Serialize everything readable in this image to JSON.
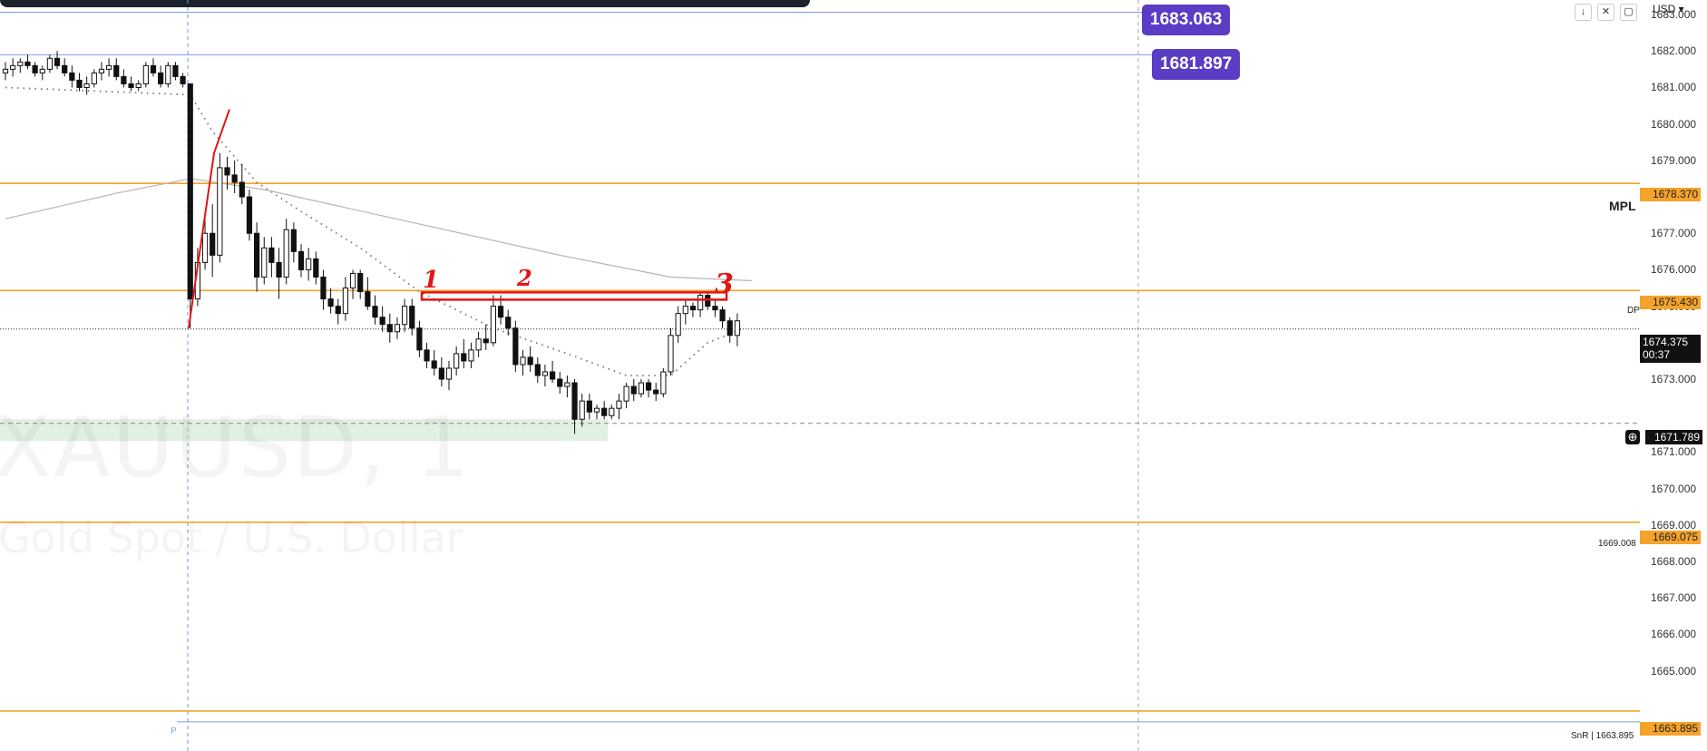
{
  "chart_data": {
    "type": "candlestick",
    "symbol_watermark": "XAUUSD, 1",
    "description_watermark": "Gold Spot / U.S. Dollar",
    "currency": "USD",
    "y_range": [
      1662.8,
      1683.4
    ],
    "y_ticks": [
      "1683.000",
      "1682.000",
      "1681.000",
      "1680.000",
      "1679.000",
      "1678.000",
      "1677.000",
      "1676.000",
      "1675.000",
      "1673.000",
      "1671.000",
      "1670.000",
      "1669.000",
      "1668.000",
      "1667.000",
      "1666.000",
      "1665.000"
    ],
    "candles": [
      [
        1681.4,
        1681.7,
        1681.2,
        1681.5
      ],
      [
        1681.5,
        1681.8,
        1681.3,
        1681.6
      ],
      [
        1681.6,
        1681.8,
        1681.4,
        1681.7
      ],
      [
        1681.7,
        1681.9,
        1681.5,
        1681.6
      ],
      [
        1681.6,
        1681.7,
        1681.3,
        1681.4
      ],
      [
        1681.4,
        1681.6,
        1681.2,
        1681.5
      ],
      [
        1681.5,
        1681.9,
        1681.4,
        1681.8
      ],
      [
        1681.8,
        1682.0,
        1681.5,
        1681.6
      ],
      [
        1681.6,
        1681.8,
        1681.3,
        1681.4
      ],
      [
        1681.4,
        1681.6,
        1681.0,
        1681.2
      ],
      [
        1681.2,
        1681.4,
        1680.9,
        1681.0
      ],
      [
        1681.0,
        1681.3,
        1680.8,
        1681.1
      ],
      [
        1681.1,
        1681.5,
        1681.0,
        1681.4
      ],
      [
        1681.4,
        1681.7,
        1681.2,
        1681.5
      ],
      [
        1681.5,
        1681.8,
        1681.3,
        1681.6
      ],
      [
        1681.6,
        1681.8,
        1681.2,
        1681.3
      ],
      [
        1681.3,
        1681.5,
        1681.0,
        1681.1
      ],
      [
        1681.1,
        1681.3,
        1680.9,
        1681.0
      ],
      [
        1681.0,
        1681.2,
        1680.9,
        1681.1
      ],
      [
        1681.1,
        1681.7,
        1681.0,
        1681.6
      ],
      [
        1681.6,
        1681.8,
        1681.3,
        1681.4
      ],
      [
        1681.4,
        1681.6,
        1681.0,
        1681.1
      ],
      [
        1681.1,
        1681.7,
        1681.0,
        1681.6
      ],
      [
        1681.6,
        1681.7,
        1681.2,
        1681.3
      ],
      [
        1681.3,
        1681.4,
        1681.0,
        1681.1
      ],
      [
        1681.1,
        1681.1,
        1674.4,
        1675.2
      ],
      [
        1675.2,
        1676.6,
        1675.0,
        1676.2
      ],
      [
        1676.2,
        1677.4,
        1676.0,
        1677.0
      ],
      [
        1677.0,
        1677.8,
        1675.8,
        1676.4
      ],
      [
        1676.4,
        1679.2,
        1676.2,
        1678.8
      ],
      [
        1678.8,
        1679.1,
        1678.2,
        1678.6
      ],
      [
        1678.6,
        1679.0,
        1678.1,
        1678.4
      ],
      [
        1678.4,
        1678.9,
        1677.8,
        1678.0
      ],
      [
        1678.0,
        1678.2,
        1676.8,
        1677.0
      ],
      [
        1677.0,
        1677.3,
        1675.4,
        1675.8
      ],
      [
        1675.8,
        1676.9,
        1675.6,
        1676.6
      ],
      [
        1676.6,
        1676.9,
        1675.8,
        1676.2
      ],
      [
        1676.2,
        1676.6,
        1675.2,
        1675.8
      ],
      [
        1675.8,
        1677.4,
        1675.6,
        1677.1
      ],
      [
        1677.1,
        1677.3,
        1676.2,
        1676.5
      ],
      [
        1676.5,
        1676.7,
        1675.8,
        1676.0
      ],
      [
        1676.0,
        1676.6,
        1675.7,
        1676.3
      ],
      [
        1676.3,
        1676.5,
        1675.6,
        1675.8
      ],
      [
        1675.8,
        1676.0,
        1674.9,
        1675.2
      ],
      [
        1675.2,
        1675.5,
        1674.8,
        1675.0
      ],
      [
        1675.0,
        1675.2,
        1674.5,
        1674.8
      ],
      [
        1674.8,
        1675.8,
        1674.6,
        1675.5
      ],
      [
        1675.5,
        1676.0,
        1675.2,
        1675.9
      ],
      [
        1675.9,
        1676.0,
        1675.2,
        1675.4
      ],
      [
        1675.4,
        1675.8,
        1674.9,
        1675.0
      ],
      [
        1675.0,
        1675.3,
        1674.5,
        1674.7
      ],
      [
        1674.7,
        1675.0,
        1674.3,
        1674.5
      ],
      [
        1674.5,
        1674.8,
        1674.0,
        1674.3
      ],
      [
        1674.3,
        1674.7,
        1674.1,
        1674.5
      ],
      [
        1674.5,
        1675.2,
        1674.3,
        1675.0
      ],
      [
        1675.0,
        1675.2,
        1674.2,
        1674.4
      ],
      [
        1674.4,
        1674.6,
        1673.6,
        1673.8
      ],
      [
        1673.8,
        1674.0,
        1673.3,
        1673.5
      ],
      [
        1673.5,
        1673.8,
        1673.1,
        1673.3
      ],
      [
        1673.3,
        1673.6,
        1672.8,
        1673.0
      ],
      [
        1673.0,
        1673.5,
        1672.7,
        1673.3
      ],
      [
        1673.3,
        1673.9,
        1673.1,
        1673.7
      ],
      [
        1673.7,
        1674.1,
        1673.3,
        1673.5
      ],
      [
        1673.5,
        1674.0,
        1673.3,
        1673.8
      ],
      [
        1673.8,
        1674.3,
        1673.6,
        1674.1
      ],
      [
        1674.1,
        1674.5,
        1673.8,
        1674.0
      ],
      [
        1674.0,
        1675.3,
        1673.9,
        1675.0
      ],
      [
        1675.0,
        1675.3,
        1674.5,
        1674.7
      ],
      [
        1674.7,
        1674.9,
        1674.2,
        1674.4
      ],
      [
        1674.4,
        1674.6,
        1673.2,
        1673.4
      ],
      [
        1673.4,
        1673.8,
        1673.1,
        1673.6
      ],
      [
        1673.6,
        1673.9,
        1673.2,
        1673.4
      ],
      [
        1673.4,
        1673.6,
        1672.9,
        1673.1
      ],
      [
        1673.1,
        1673.4,
        1672.8,
        1673.2
      ],
      [
        1673.2,
        1673.5,
        1672.9,
        1673.0
      ],
      [
        1673.0,
        1673.2,
        1672.6,
        1672.8
      ],
      [
        1672.8,
        1673.1,
        1672.5,
        1672.9
      ],
      [
        1672.9,
        1673.0,
        1671.5,
        1671.9
      ],
      [
        1671.9,
        1672.6,
        1671.7,
        1672.4
      ],
      [
        1672.4,
        1672.6,
        1671.9,
        1672.1
      ],
      [
        1672.1,
        1672.3,
        1671.9,
        1672.2
      ],
      [
        1672.2,
        1672.4,
        1671.9,
        1672.0
      ],
      [
        1672.0,
        1672.3,
        1671.9,
        1672.2
      ],
      [
        1672.2,
        1672.6,
        1671.9,
        1672.4
      ],
      [
        1672.4,
        1672.9,
        1672.2,
        1672.8
      ],
      [
        1672.8,
        1673.0,
        1672.4,
        1672.6
      ],
      [
        1672.6,
        1673.0,
        1672.5,
        1672.9
      ],
      [
        1672.9,
        1673.0,
        1672.5,
        1672.7
      ],
      [
        1672.7,
        1672.9,
        1672.4,
        1672.6
      ],
      [
        1672.6,
        1673.3,
        1672.5,
        1673.2
      ],
      [
        1673.2,
        1674.4,
        1673.1,
        1674.2
      ],
      [
        1674.2,
        1675.0,
        1674.0,
        1674.8
      ],
      [
        1674.8,
        1675.2,
        1674.5,
        1675.0
      ],
      [
        1675.0,
        1675.1,
        1674.7,
        1674.9
      ],
      [
        1674.9,
        1675.4,
        1674.7,
        1675.3
      ],
      [
        1675.3,
        1675.4,
        1674.9,
        1675.0
      ],
      [
        1675.0,
        1675.2,
        1674.7,
        1674.9
      ],
      [
        1674.9,
        1675.0,
        1674.4,
        1674.6
      ],
      [
        1674.6,
        1674.7,
        1674.0,
        1674.2
      ],
      [
        1674.2,
        1674.8,
        1673.9,
        1674.6
      ]
    ],
    "indicators": [
      {
        "name": "dotted-ma",
        "style": "dotted",
        "color": "#777777",
        "values": [
          [
            0,
            1681.0
          ],
          [
            25,
            1680.8
          ],
          [
            28,
            1679.8
          ],
          [
            34,
            1678.4
          ],
          [
            40,
            1677.6
          ],
          [
            48,
            1676.6
          ],
          [
            56,
            1675.4
          ],
          [
            66,
            1674.4
          ],
          [
            76,
            1673.7
          ],
          [
            84,
            1673.1
          ],
          [
            90,
            1673.1
          ],
          [
            95,
            1674.0
          ],
          [
            100,
            1674.4
          ]
        ]
      },
      {
        "name": "solid-ma",
        "style": "solid",
        "color": "#b8b4b4",
        "values": [
          [
            0,
            1677.4
          ],
          [
            15,
            1678.1
          ],
          [
            25,
            1678.5
          ],
          [
            35,
            1678.2
          ],
          [
            55,
            1677.3
          ],
          [
            75,
            1676.4
          ],
          [
            90,
            1675.8
          ],
          [
            101,
            1675.7
          ]
        ]
      }
    ],
    "horizontal_levels": [
      {
        "price": 1683.063,
        "label": "1683.063",
        "color": "#5b3cc4",
        "style": "solid-thin"
      },
      {
        "price": 1681.897,
        "label": "1681.897",
        "color": "#5b3cc4",
        "style": "solid-thin"
      },
      {
        "price": 1678.37,
        "label": "1678.370",
        "color": "#f5a32a"
      },
      {
        "price": 1675.43,
        "label": "1675.430",
        "color": "#f5a32a"
      },
      {
        "price": 1669.075,
        "label": "1669.075",
        "color": "#f5a32a"
      },
      {
        "price": 1663.895,
        "label": "1663.895",
        "color": "#f5a32a"
      }
    ],
    "last_price": "1674.375",
    "countdown": "00:37",
    "crosshair_price": "1671.789",
    "annotations": {
      "numbers": [
        "1",
        "2",
        "3"
      ],
      "mpl_label": "MPL",
      "dp_label": "DP",
      "level_note": "1669.008",
      "snr_note": "SnR | 1663.895",
      "pivot_marker": "P"
    }
  }
}
